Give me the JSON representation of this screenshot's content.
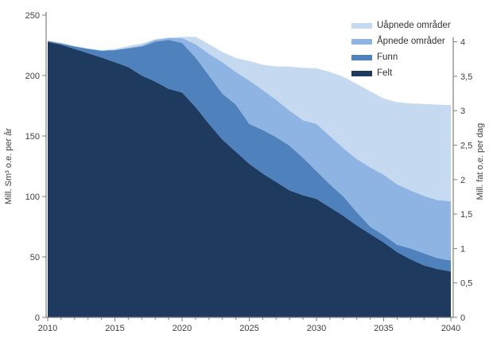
{
  "chart": {
    "legend": [
      {
        "label": "Uåpnede områder",
        "color": "#C5D9F1"
      },
      {
        "label": "Åpnede områder",
        "color": "#8DB4E2"
      },
      {
        "label": "Funn",
        "color": "#4F81BD"
      },
      {
        "label": "Felt",
        "color": "#1F3A5F"
      }
    ],
    "left_axis": {
      "title": "Mill. Sm³ o.e. per år",
      "tick_labels": [
        "0",
        "50",
        "100",
        "150",
        "200",
        "250"
      ],
      "min": 0,
      "max": 250
    },
    "right_axis": {
      "title": "Mill. fat o.e. per dag",
      "tick_labels": [
        "0",
        "0,5",
        "1",
        "1,5",
        "2",
        "2,5",
        "3",
        "3,5",
        "4"
      ],
      "min": 0,
      "max": 4
    },
    "x_axis": {
      "major_labels": [
        "2010",
        "2015",
        "2020",
        "2025",
        "2030",
        "2035",
        "2040"
      ],
      "minor_tick_every_years": 1
    }
  },
  "chart_data": {
    "type": "area",
    "stacked": true,
    "title": "",
    "xlabel": "",
    "ylabel_left": "Mill. Sm³ o.e. per år",
    "ylabel_right": "Mill. fat o.e. per dag",
    "x_range": [
      2010,
      2040
    ],
    "ylim_left": [
      0,
      250
    ],
    "ylim_right": [
      0,
      4
    ],
    "grid": false,
    "legend_position": "top-right-inside",
    "x": [
      2010,
      2011,
      2012,
      2013,
      2014,
      2015,
      2016,
      2017,
      2018,
      2019,
      2020,
      2021,
      2022,
      2023,
      2024,
      2025,
      2026,
      2027,
      2028,
      2029,
      2030,
      2031,
      2032,
      2033,
      2034,
      2035,
      2036,
      2037,
      2038,
      2039,
      2040
    ],
    "series": [
      {
        "name": "Felt",
        "color": "#1F3A5F",
        "values": [
          228,
          225.5,
          222,
          218.5,
          215,
          211,
          207,
          200,
          195,
          189,
          186,
          174,
          160,
          147,
          137,
          127,
          119,
          112,
          105,
          101,
          98,
          91,
          84,
          76,
          69,
          62,
          54,
          48,
          43,
          40,
          38
        ]
      },
      {
        "name": "Funn",
        "color": "#4F81BD",
        "values": [
          0.5,
          1,
          2,
          3.5,
          5.5,
          10,
          15.5,
          24,
          33,
          40.5,
          41,
          41,
          40,
          38,
          39,
          33,
          36,
          37,
          37,
          31,
          23,
          19,
          16,
          11,
          6,
          6,
          6,
          9,
          10,
          9,
          9
        ]
      },
      {
        "name": "Åpnede områder",
        "color": "#8DB4E2",
        "values": [
          0.2,
          0.3,
          0.3,
          0.3,
          0.3,
          0.3,
          0.5,
          1,
          1.5,
          1.5,
          4,
          11,
          18,
          26,
          27,
          36,
          33,
          31,
          29,
          31,
          39,
          40,
          40,
          44,
          49,
          50,
          50,
          48,
          47.5,
          48,
          49
        ]
      },
      {
        "name": "Uåpnede områder",
        "color": "#C5D9F1",
        "values": [
          0.3,
          0.2,
          0.2,
          0.2,
          0.2,
          0.7,
          1.5,
          1.5,
          0.5,
          0.5,
          1,
          6,
          8,
          8.5,
          11.5,
          16,
          21,
          27.5,
          36.5,
          43.3,
          46,
          53,
          59,
          62,
          63,
          63,
          68,
          72,
          76,
          79,
          79.5
        ]
      }
    ]
  }
}
